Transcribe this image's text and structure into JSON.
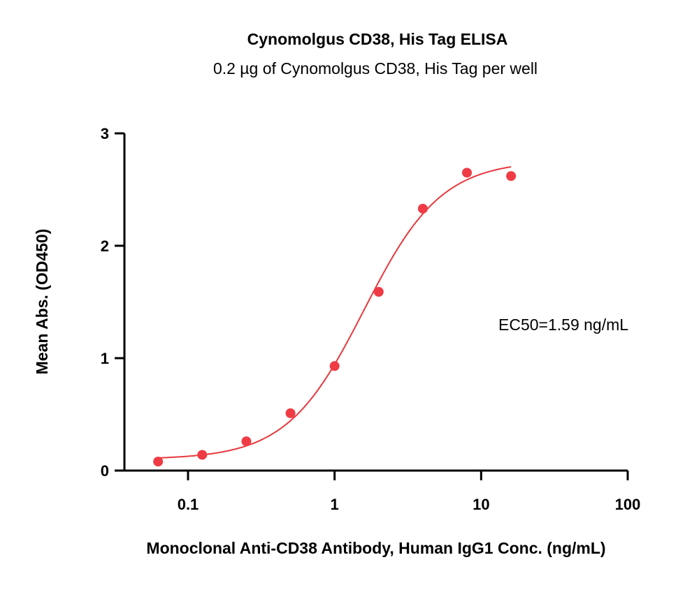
{
  "colors": {
    "series": "#ef3b44",
    "curve": "#e8383d",
    "axis": "#000000"
  },
  "chart_data": {
    "type": "scatter",
    "title": "Cynomolgus CD38, His Tag ELISA",
    "subtitle": "0.2 µg of Cynomolgus CD38, His Tag per well",
    "xlabel": "Monoclonal Anti-CD38 Antibody, Human IgG1 Conc. (ng/mL)",
    "ylabel": "Mean Abs. (OD450)",
    "x_scale": "log",
    "xlim": [
      0.03,
      100
    ],
    "ylim": [
      0,
      3
    ],
    "x_ticks": [
      {
        "value": 0.1,
        "label": "0.1"
      },
      {
        "value": 1,
        "label": "1"
      },
      {
        "value": 10,
        "label": "10"
      },
      {
        "value": 100,
        "label": "100"
      }
    ],
    "y_ticks": [
      {
        "value": 0,
        "label": "0"
      },
      {
        "value": 1,
        "label": "1"
      },
      {
        "value": 2,
        "label": "2"
      },
      {
        "value": 3,
        "label": "3"
      }
    ],
    "grid": false,
    "legend": "none",
    "annotation": "EC50=1.59 ng/mL",
    "series": [
      {
        "x": [
          0.0625,
          0.125,
          0.25,
          0.5,
          1,
          2,
          4,
          8,
          16
        ],
        "y": [
          0.08,
          0.14,
          0.26,
          0.51,
          0.93,
          1.59,
          2.33,
          2.65,
          2.62
        ]
      }
    ],
    "fit": {
      "model": "4PL",
      "bottom": 0.1,
      "top": 2.76,
      "ec50": 1.59,
      "hill": 1.65,
      "x_range": [
        0.0625,
        16
      ]
    }
  }
}
